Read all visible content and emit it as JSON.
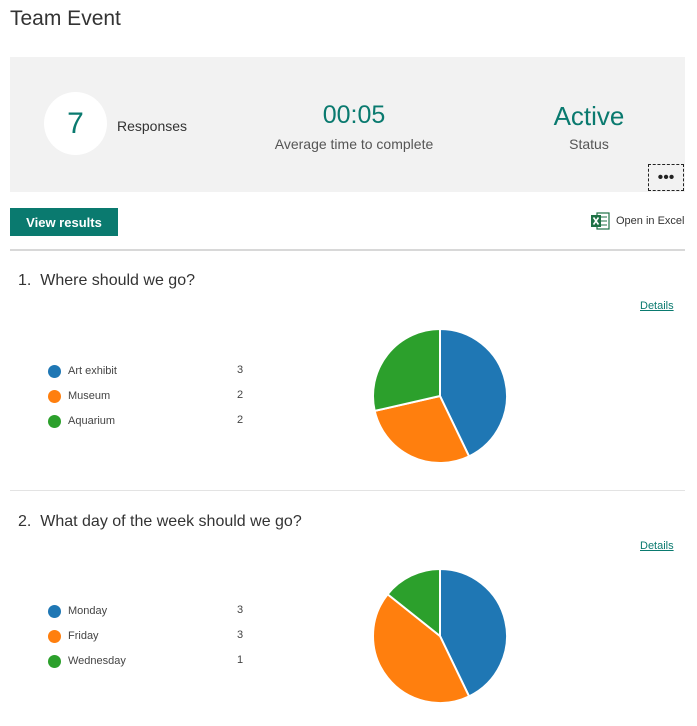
{
  "page": {
    "title": "Team Event"
  },
  "summary": {
    "responses": "7",
    "responses_label": "Responses",
    "avg_time": "00:05",
    "avg_time_label": "Average time to complete",
    "status": "Active",
    "status_label": "Status",
    "more_label": "•••"
  },
  "toolbar": {
    "view_results": "View results",
    "open_excel": "Open in Excel"
  },
  "colors": {
    "accent": "#0a7a6f",
    "blue": "#1f77b4",
    "orange": "#ff7f0e",
    "green": "#2ca02c"
  },
  "questions": [
    {
      "number": "1.",
      "title": "Where should we go?",
      "details": "Details",
      "options": [
        {
          "label": "Art exhibit",
          "count": "3"
        },
        {
          "label": "Museum",
          "count": "2"
        },
        {
          "label": "Aquarium",
          "count": "2"
        }
      ]
    },
    {
      "number": "2.",
      "title": "What day of the week should we go?",
      "details": "Details",
      "options": [
        {
          "label": "Monday",
          "count": "3"
        },
        {
          "label": "Friday",
          "count": "3"
        },
        {
          "label": "Wednesday",
          "count": "1"
        }
      ]
    }
  ],
  "chart_data": [
    {
      "type": "pie",
      "categories": [
        "Art exhibit",
        "Museum",
        "Aquarium"
      ],
      "values": [
        3,
        2,
        2
      ],
      "colors": [
        "#1f77b4",
        "#ff7f0e",
        "#2ca02c"
      ]
    },
    {
      "type": "pie",
      "categories": [
        "Monday",
        "Friday",
        "Wednesday"
      ],
      "values": [
        3,
        3,
        1
      ],
      "colors": [
        "#1f77b4",
        "#ff7f0e",
        "#2ca02c"
      ]
    }
  ]
}
